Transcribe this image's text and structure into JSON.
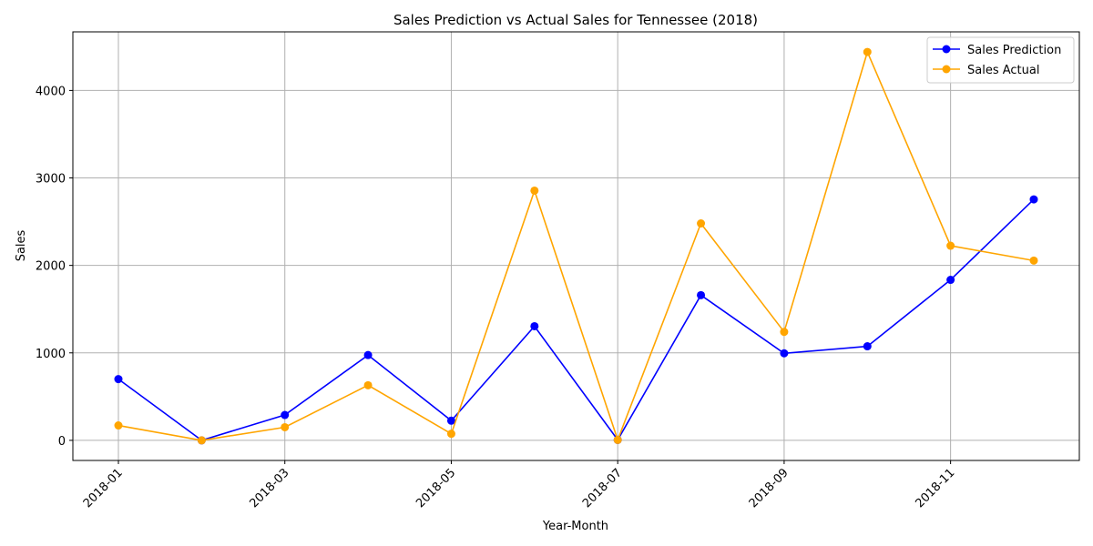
{
  "chart_data": {
    "type": "line",
    "title": "Sales Prediction vs Actual Sales for Tennessee (2018)",
    "xlabel": "Year-Month",
    "ylabel": "Sales",
    "x": [
      "2018-01",
      "2018-02",
      "2018-03",
      "2018-04",
      "2018-05",
      "2018-06",
      "2018-07",
      "2018-08",
      "2018-09",
      "2018-10",
      "2018-11",
      "2018-12"
    ],
    "x_tick_labels": [
      "2018-01",
      "2018-03",
      "2018-05",
      "2018-07",
      "2018-09",
      "2018-11"
    ],
    "y_ticks": [
      0,
      1000,
      2000,
      3000,
      4000
    ],
    "ylim": [
      -230,
      4670
    ],
    "grid": true,
    "legend_position": "top-right",
    "series": [
      {
        "name": "Sales Prediction",
        "color": "#0000ff",
        "marker": "circle",
        "values": [
          700,
          0,
          290,
          975,
          225,
          1305,
          5,
          1660,
          995,
          1075,
          1835,
          2755
        ]
      },
      {
        "name": "Sales Actual",
        "color": "#ffa500",
        "marker": "circle",
        "values": [
          170,
          0,
          150,
          630,
          75,
          2855,
          5,
          2480,
          1240,
          4440,
          2225,
          2055
        ]
      }
    ]
  }
}
